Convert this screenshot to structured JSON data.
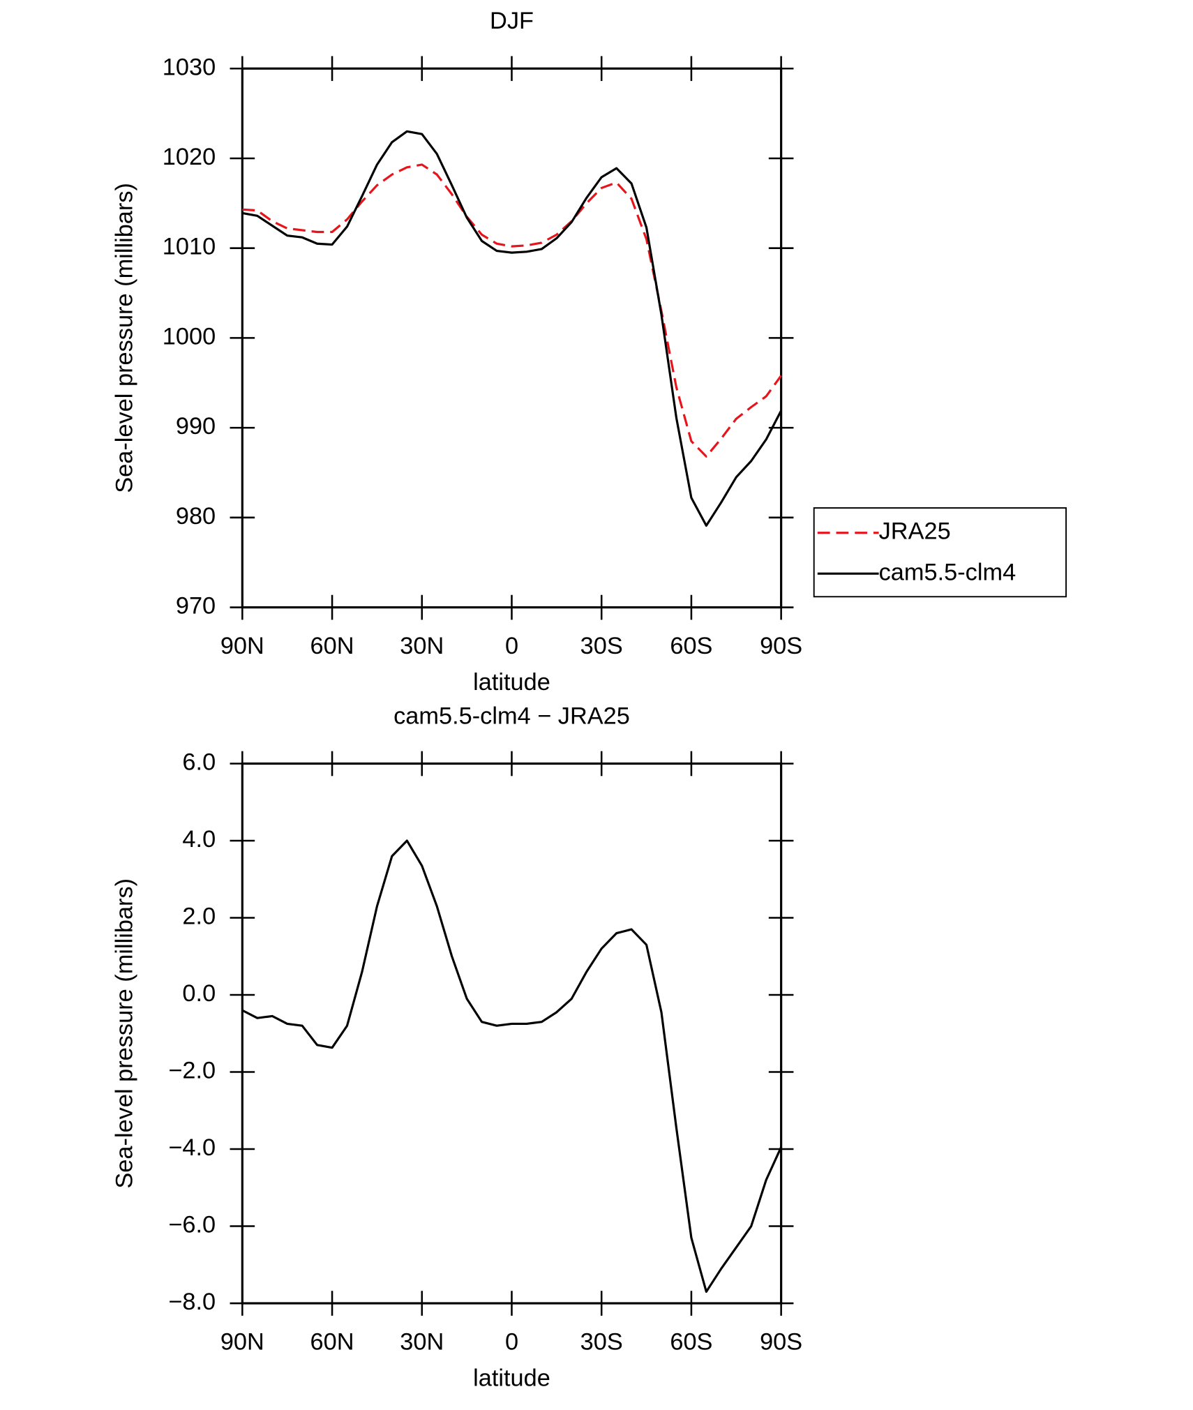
{
  "chart_data": [
    {
      "type": "line",
      "title": "DJF",
      "xlabel": "latitude",
      "ylabel": "Sea-level pressure (millibars)",
      "x": [
        90,
        85,
        80,
        75,
        70,
        65,
        60,
        55,
        50,
        45,
        40,
        35,
        30,
        25,
        20,
        15,
        10,
        5,
        0,
        -5,
        -10,
        -15,
        -20,
        -25,
        -30,
        -35,
        -40,
        -45,
        -50,
        -55,
        -60,
        -65,
        -70,
        -75,
        -80,
        -85,
        -90
      ],
      "xlim": [
        90,
        -90
      ],
      "xticks": [
        {
          "value": 90,
          "label": "90N"
        },
        {
          "value": 60,
          "label": "60N"
        },
        {
          "value": 30,
          "label": "30N"
        },
        0,
        {
          "value": -30,
          "label": "30S"
        },
        {
          "value": -60,
          "label": "60S"
        },
        {
          "value": -90,
          "label": "90S"
        }
      ],
      "ylim": [
        970,
        1030
      ],
      "yticks": [
        970,
        980,
        990,
        1000,
        1010,
        1020,
        1030
      ],
      "legend": "right",
      "series": [
        {
          "name": "JRA25",
          "color": "#e8141c",
          "dash": true,
          "values": [
            1014.3,
            1014.2,
            1013.0,
            1012.2,
            1012.0,
            1011.8,
            1011.8,
            1013.2,
            1015.2,
            1017.0,
            1018.2,
            1019.0,
            1019.3,
            1018.2,
            1016.0,
            1013.5,
            1011.5,
            1010.5,
            1010.2,
            1010.3,
            1010.6,
            1011.5,
            1013.0,
            1015.0,
            1016.7,
            1017.3,
            1015.5,
            1011.0,
            1003.0,
            994.5,
            988.5,
            986.8,
            988.8,
            991.0,
            992.3,
            993.5,
            995.8
          ]
        },
        {
          "name": "cam5.5-clm4",
          "color": "#000000",
          "dash": false,
          "values": [
            1013.9,
            1013.6,
            1012.5,
            1011.4,
            1011.2,
            1010.5,
            1010.4,
            1012.4,
            1015.8,
            1019.3,
            1021.8,
            1023.0,
            1022.7,
            1020.5,
            1017.0,
            1013.4,
            1010.8,
            1009.7,
            1009.5,
            1009.6,
            1009.9,
            1011.1,
            1012.9,
            1015.6,
            1017.9,
            1018.9,
            1017.2,
            1012.3,
            1002.6,
            991.1,
            982.2,
            979.1,
            981.7,
            984.5,
            986.3,
            988.7,
            991.9
          ]
        }
      ]
    },
    {
      "type": "line",
      "title": "cam5.5-clm4 − JRA25",
      "xlabel": "latitude",
      "ylabel": "Sea-level pressure (millibars)",
      "x": [
        90,
        85,
        80,
        75,
        70,
        65,
        60,
        55,
        50,
        45,
        40,
        35,
        30,
        25,
        20,
        15,
        10,
        5,
        0,
        -5,
        -10,
        -15,
        -20,
        -25,
        -30,
        -35,
        -40,
        -45,
        -50,
        -55,
        -60,
        -65,
        -70,
        -75,
        -80,
        -85,
        -90
      ],
      "xlim": [
        90,
        -90
      ],
      "xticks": [
        {
          "value": 90,
          "label": "90N"
        },
        {
          "value": 60,
          "label": "60N"
        },
        {
          "value": 30,
          "label": "30N"
        },
        0,
        {
          "value": -30,
          "label": "30S"
        },
        {
          "value": -60,
          "label": "60S"
        },
        {
          "value": -90,
          "label": "90S"
        }
      ],
      "ylim": [
        -8,
        6
      ],
      "yticks": [
        {
          "value": -8,
          "label": "−8.0"
        },
        {
          "value": -6,
          "label": "−6.0"
        },
        {
          "value": -4,
          "label": "−4.0"
        },
        {
          "value": -2,
          "label": "−2.0"
        },
        {
          "value": 0,
          "label": "0.0"
        },
        {
          "value": 2,
          "label": "2.0"
        },
        {
          "value": 4,
          "label": "4.0"
        },
        {
          "value": 6,
          "label": "6.0"
        }
      ],
      "series": [
        {
          "color": "#000000",
          "dash": false,
          "values": [
            -0.4,
            -0.6,
            -0.55,
            -0.75,
            -0.8,
            -1.3,
            -1.37,
            -0.8,
            0.6,
            2.3,
            3.6,
            4.0,
            3.35,
            2.3,
            1.0,
            -0.1,
            -0.7,
            -0.8,
            -0.75,
            -0.75,
            -0.7,
            -0.45,
            -0.1,
            0.6,
            1.2,
            1.6,
            1.7,
            1.3,
            -0.45,
            -3.45,
            -6.3,
            -7.7,
            -7.1,
            -6.55,
            -6.0,
            -4.8,
            -3.95
          ]
        }
      ]
    }
  ]
}
